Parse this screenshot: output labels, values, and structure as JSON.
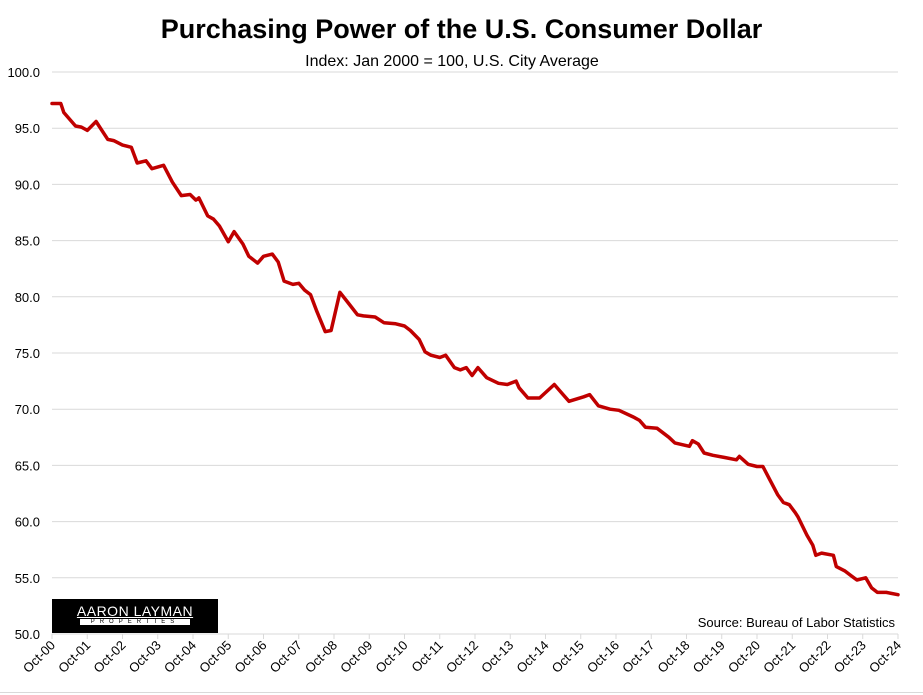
{
  "chart_data": {
    "type": "line",
    "title": "Purchasing Power of the U.S. Consumer Dollar",
    "subtitle": "Index: Jan 2000 = 100, U.S. City Average",
    "xlabel": "",
    "ylabel": "",
    "ylim": [
      50,
      100
    ],
    "yticks": [
      "50.0",
      "55.0",
      "60.0",
      "65.0",
      "70.0",
      "75.0",
      "80.0",
      "85.0",
      "90.0",
      "95.0",
      "100.0"
    ],
    "xticks": [
      "Oct-00",
      "Oct-01",
      "Oct-02",
      "Oct-03",
      "Oct-04",
      "Oct-05",
      "Oct-06",
      "Oct-07",
      "Oct-08",
      "Oct-09",
      "Oct-10",
      "Oct-11",
      "Oct-12",
      "Oct-13",
      "Oct-14",
      "Oct-15",
      "Oct-16",
      "Oct-17",
      "Oct-18",
      "Oct-19",
      "Oct-20",
      "Oct-21",
      "Oct-22",
      "Oct-23",
      "Oct-24"
    ],
    "xlim": [
      "2000-10",
      "2024-10"
    ],
    "grid": "horizontal",
    "line_color": "#C00000",
    "series": [
      {
        "x": [
          "2000-10",
          "2001-01",
          "2001-02",
          "2001-06",
          "2001-08",
          "2001-10",
          "2002-01",
          "2002-02",
          "2002-05",
          "2002-07",
          "2002-10",
          "2003-01",
          "2003-03",
          "2003-06",
          "2003-08",
          "2003-12",
          "2004-03",
          "2004-06",
          "2004-09",
          "2004-11",
          "2004-12",
          "2005-03",
          "2005-05",
          "2005-07",
          "2005-10",
          "2005-12",
          "2006-03",
          "2006-05",
          "2006-08",
          "2006-10",
          "2007-01",
          "2007-03",
          "2007-05",
          "2007-08",
          "2007-10",
          "2007-12",
          "2008-02",
          "2008-04",
          "2008-07",
          "2008-09",
          "2008-12",
          "2009-03",
          "2009-06",
          "2009-08",
          "2009-12",
          "2010-03",
          "2010-07",
          "2010-10",
          "2010-12",
          "2011-03",
          "2011-05",
          "2011-07",
          "2011-10",
          "2011-12",
          "2012-03",
          "2012-05",
          "2012-07",
          "2012-09",
          "2012-11",
          "2013-02",
          "2013-06",
          "2013-09",
          "2013-12",
          "2014-01",
          "2014-04",
          "2014-08",
          "2015-01",
          "2015-04",
          "2015-06",
          "2015-11",
          "2016-01",
          "2016-04",
          "2016-08",
          "2016-11",
          "2017-04",
          "2017-06",
          "2017-08",
          "2017-12",
          "2018-04",
          "2018-06",
          "2018-11",
          "2018-12",
          "2019-02",
          "2019-04",
          "2019-07",
          "2019-11",
          "2020-03",
          "2020-04",
          "2020-07",
          "2020-10",
          "2020-12",
          "2021-02",
          "2021-05",
          "2021-07",
          "2021-09",
          "2021-11",
          "2021-12",
          "2022-03",
          "2022-05",
          "2022-06",
          "2022-08",
          "2022-12",
          "2023-01",
          "2023-04",
          "2023-06",
          "2023-08",
          "2023-11",
          "2024-01",
          "2024-03",
          "2024-06",
          "2024-10"
        ],
        "values": [
          97.2,
          97.2,
          96.4,
          95.2,
          95.1,
          94.8,
          95.6,
          95.2,
          94.0,
          93.9,
          93.5,
          93.3,
          91.9,
          92.1,
          91.4,
          91.7,
          90.2,
          89.0,
          89.1,
          88.6,
          88.8,
          87.2,
          86.9,
          86.3,
          84.9,
          85.8,
          84.7,
          83.6,
          83.0,
          83.6,
          83.8,
          83.1,
          81.4,
          81.1,
          81.2,
          80.6,
          80.2,
          78.8,
          76.9,
          77.0,
          80.4,
          79.4,
          78.4,
          78.3,
          78.2,
          77.7,
          77.6,
          77.4,
          77.0,
          76.2,
          75.1,
          74.8,
          74.6,
          74.8,
          73.7,
          73.5,
          73.7,
          73.0,
          73.7,
          72.8,
          72.3,
          72.2,
          72.5,
          71.9,
          71.0,
          71.0,
          72.2,
          71.3,
          70.7,
          71.1,
          71.3,
          70.3,
          70.0,
          69.9,
          69.3,
          69.0,
          68.4,
          68.3,
          67.5,
          67.0,
          66.7,
          67.2,
          66.9,
          66.1,
          65.9,
          65.7,
          65.5,
          65.8,
          65.1,
          64.9,
          64.9,
          63.9,
          62.4,
          61.7,
          61.5,
          60.8,
          60.4,
          58.8,
          57.9,
          57.0,
          57.2,
          57.0,
          56.0,
          55.6,
          55.2,
          54.8,
          55.0,
          54.1,
          53.7,
          53.7,
          53.5
        ]
      }
    ],
    "annotations": {
      "source": "Source: Bureau of Labor Statistics",
      "logo": "AARON LAYMAN",
      "logo_sub": "PROPERTIES"
    }
  }
}
